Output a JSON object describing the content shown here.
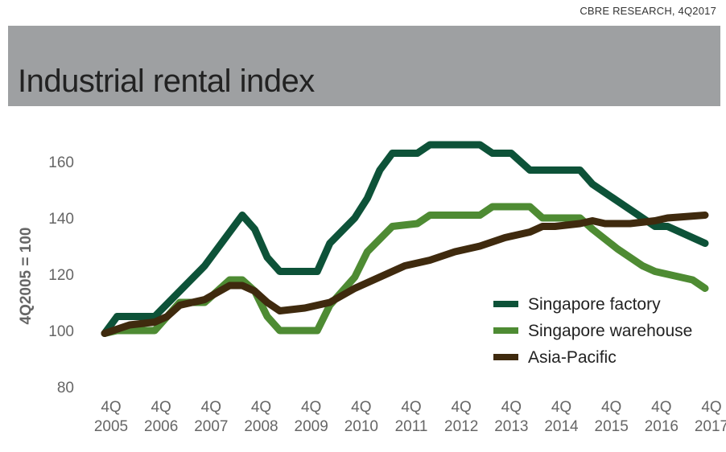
{
  "source": "CBRE RESEARCH, 4Q2017",
  "chart_data": {
    "type": "line",
    "title": "Industrial rental index",
    "ylabel": "4Q2005 = 100",
    "ylim": [
      80,
      170
    ],
    "yticks": [
      80,
      100,
      120,
      140,
      160
    ],
    "xlim": [
      2005.75,
      2017.75
    ],
    "xticks": [
      {
        "x": 2005.75,
        "top": "4Q",
        "bottom": "2005"
      },
      {
        "x": 2006.75,
        "top": "4Q",
        "bottom": "2006"
      },
      {
        "x": 2007.75,
        "top": "4Q",
        "bottom": "2007"
      },
      {
        "x": 2008.75,
        "top": "4Q",
        "bottom": "2008"
      },
      {
        "x": 2009.75,
        "top": "4Q",
        "bottom": "2009"
      },
      {
        "x": 2010.75,
        "top": "4Q",
        "bottom": "2010"
      },
      {
        "x": 2011.75,
        "top": "4Q",
        "bottom": "2011"
      },
      {
        "x": 2012.75,
        "top": "4Q",
        "bottom": "2012"
      },
      {
        "x": 2013.75,
        "top": "4Q",
        "bottom": "2013"
      },
      {
        "x": 2014.75,
        "top": "4Q",
        "bottom": "2014"
      },
      {
        "x": 2015.75,
        "top": "4Q",
        "bottom": "2015"
      },
      {
        "x": 2016.75,
        "top": "4Q",
        "bottom": "2016"
      },
      {
        "x": 2017.75,
        "top": "4Q",
        "bottom": "2017"
      }
    ],
    "legend_position": "right",
    "series": [
      {
        "name": "Singapore factory",
        "color": "#0d5238",
        "points": [
          [
            2005.75,
            99
          ],
          [
            2006.0,
            105
          ],
          [
            2006.75,
            105
          ],
          [
            2007.75,
            123
          ],
          [
            2008.5,
            141
          ],
          [
            2008.75,
            136
          ],
          [
            2009.0,
            126
          ],
          [
            2009.25,
            121
          ],
          [
            2010.0,
            121
          ],
          [
            2010.25,
            131
          ],
          [
            2010.75,
            140
          ],
          [
            2011.0,
            147
          ],
          [
            2011.25,
            157
          ],
          [
            2011.5,
            163
          ],
          [
            2012.0,
            163
          ],
          [
            2012.25,
            166
          ],
          [
            2013.25,
            166
          ],
          [
            2013.5,
            163
          ],
          [
            2013.875,
            163
          ],
          [
            2014.25,
            157
          ],
          [
            2015.25,
            157
          ],
          [
            2015.5,
            152
          ],
          [
            2016.0,
            146
          ],
          [
            2016.5,
            140
          ],
          [
            2016.75,
            137
          ],
          [
            2017.0,
            137
          ],
          [
            2017.75,
            131
          ]
        ]
      },
      {
        "name": "Singapore warehouse",
        "color": "#4e8b33",
        "points": [
          [
            2005.75,
            99
          ],
          [
            2006.0,
            100
          ],
          [
            2006.75,
            100
          ],
          [
            2007.25,
            110
          ],
          [
            2007.75,
            110
          ],
          [
            2008.25,
            118
          ],
          [
            2008.5,
            118
          ],
          [
            2008.75,
            114
          ],
          [
            2009.0,
            105
          ],
          [
            2009.25,
            100
          ],
          [
            2010.0,
            100
          ],
          [
            2010.25,
            109
          ],
          [
            2010.75,
            119
          ],
          [
            2011.0,
            128
          ],
          [
            2011.5,
            137
          ],
          [
            2012.0,
            138
          ],
          [
            2012.25,
            141
          ],
          [
            2013.25,
            141
          ],
          [
            2013.5,
            144
          ],
          [
            2014.25,
            144
          ],
          [
            2014.5,
            140
          ],
          [
            2015.25,
            140
          ],
          [
            2015.5,
            136
          ],
          [
            2016.0,
            129
          ],
          [
            2016.5,
            123
          ],
          [
            2016.75,
            121
          ],
          [
            2017.5,
            118
          ],
          [
            2017.75,
            115
          ]
        ]
      },
      {
        "name": "Asia-Pacific",
        "color": "#3f2a0e",
        "points": [
          [
            2005.75,
            99
          ],
          [
            2006.25,
            102
          ],
          [
            2006.75,
            103
          ],
          [
            2007.0,
            105
          ],
          [
            2007.25,
            109
          ],
          [
            2007.75,
            111
          ],
          [
            2008.25,
            116
          ],
          [
            2008.5,
            116
          ],
          [
            2008.75,
            114
          ],
          [
            2009.0,
            110
          ],
          [
            2009.25,
            107
          ],
          [
            2009.75,
            108
          ],
          [
            2010.25,
            110
          ],
          [
            2010.75,
            115
          ],
          [
            2011.25,
            119
          ],
          [
            2011.75,
            123
          ],
          [
            2012.25,
            125
          ],
          [
            2012.75,
            128
          ],
          [
            2013.25,
            130
          ],
          [
            2013.75,
            133
          ],
          [
            2014.25,
            135
          ],
          [
            2014.5,
            137
          ],
          [
            2014.75,
            137
          ],
          [
            2015.25,
            138
          ],
          [
            2015.5,
            139
          ],
          [
            2015.75,
            138
          ],
          [
            2016.0,
            138
          ],
          [
            2016.25,
            138
          ],
          [
            2016.75,
            139
          ],
          [
            2017.0,
            140
          ],
          [
            2017.75,
            141
          ]
        ]
      }
    ]
  }
}
